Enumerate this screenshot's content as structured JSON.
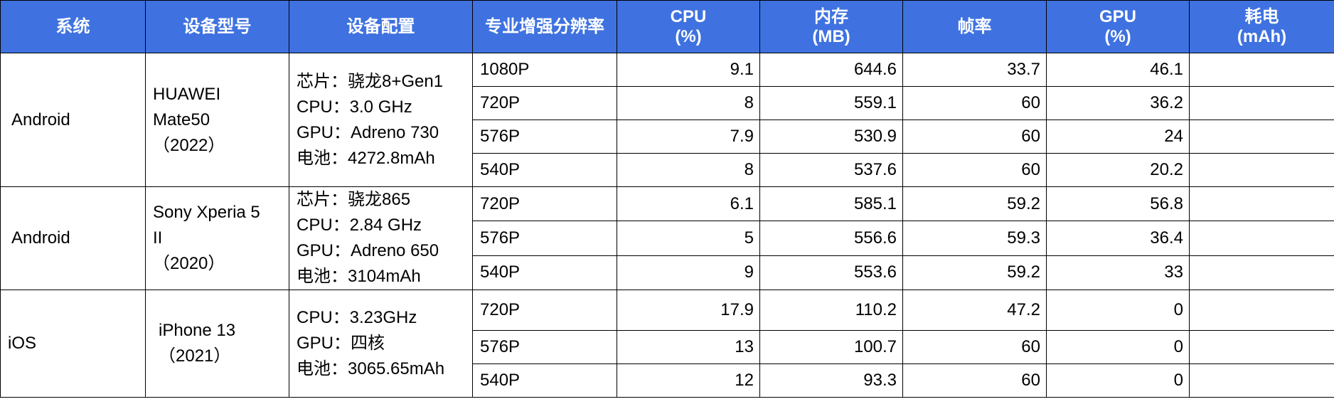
{
  "headers": {
    "system": "系统",
    "model": "设备型号",
    "config": "设备配置",
    "resolution": "专业增强分辨率",
    "cpu": [
      "CPU",
      "(%)"
    ],
    "memory": [
      "内存",
      "(MB)"
    ],
    "fps": "帧率",
    "gpu": [
      "GPU",
      "(%)"
    ],
    "power": [
      "耗电",
      "(mAh)"
    ]
  },
  "groups": [
    {
      "system": "Android",
      "model_lines": [
        "HUAWEI",
        "Mate50",
        "（2022）"
      ],
      "config_lines": [
        "芯片：骁龙8+Gen1",
        "CPU：3.0 GHz",
        "GPU：Adreno 730",
        "电池：4272.8mAh"
      ],
      "rows": [
        {
          "res": "1080P",
          "cpu": "9.1",
          "mem": "644.6",
          "fps": "33.7",
          "gpu": "46.1",
          "power": ""
        },
        {
          "res": "720P",
          "cpu": "8",
          "mem": "559.1",
          "fps": "60",
          "gpu": "36.2",
          "power": ""
        },
        {
          "res": "576P",
          "cpu": "7.9",
          "mem": "530.9",
          "fps": "60",
          "gpu": "24",
          "power": ""
        },
        {
          "res": "540P",
          "cpu": "8",
          "mem": "537.6",
          "fps": "60",
          "gpu": "20.2",
          "power": ""
        }
      ]
    },
    {
      "system": "Android",
      "model_lines": [
        "Sony Xperia 5",
        "II",
        "（2020）"
      ],
      "config_lines": [
        "芯片：骁龙865",
        "CPU：2.84 GHz",
        "GPU：Adreno 650",
        "电池：3104mAh"
      ],
      "rows": [
        {
          "res": "720P",
          "cpu": "6.1",
          "mem": "585.1",
          "fps": "59.2",
          "gpu": "56.8",
          "power": ""
        },
        {
          "res": "576P",
          "cpu": "5",
          "mem": "556.6",
          "fps": "59.3",
          "gpu": "36.4",
          "power": ""
        },
        {
          "res": "540P",
          "cpu": "9",
          "mem": "553.6",
          "fps": "59.2",
          "gpu": "33",
          "power": ""
        }
      ]
    },
    {
      "system": "iOS",
      "model_lines": [
        "iPhone 13",
        "（2021）"
      ],
      "config_lines": [
        "CPU：3.23GHz",
        "GPU：四核",
        "电池：3065.65mAh"
      ],
      "rows": [
        {
          "res": "720P",
          "cpu": "17.9",
          "mem": "110.2",
          "fps": "47.2",
          "gpu": "0",
          "power": ""
        },
        {
          "res": "576P",
          "cpu": "13",
          "mem": "100.7",
          "fps": "60",
          "gpu": "0",
          "power": ""
        },
        {
          "res": "540P",
          "cpu": "12",
          "mem": "93.3",
          "fps": "60",
          "gpu": "0",
          "power": ""
        }
      ]
    }
  ]
}
